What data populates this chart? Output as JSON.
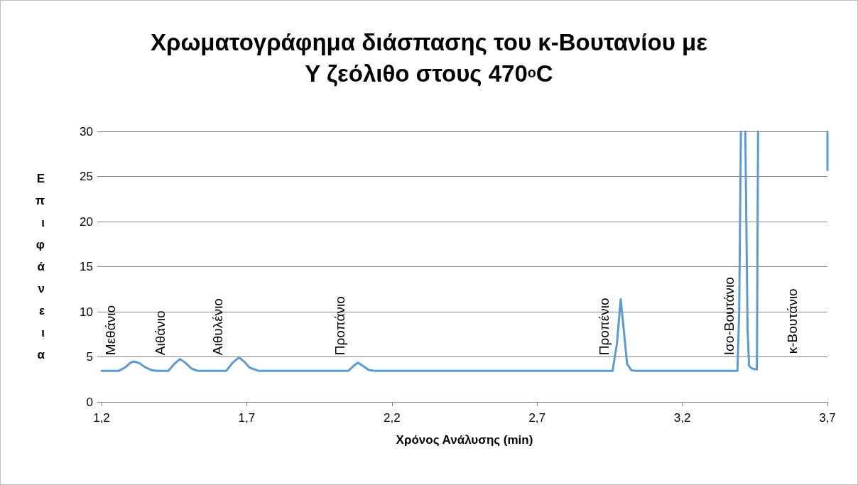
{
  "chart_data": {
    "type": "line",
    "title": "Χρωματογράφημα διάσπασης του κ-Βουτανίου με Y ζεόλιθο στους 470$^{o}$C",
    "xlabel": "Χρόνος Ανάλυσης (min)",
    "ylabel": "Επιφάνεια",
    "x": [
      1.2,
      1.26,
      1.28,
      1.3,
      1.311,
      1.33,
      1.35,
      1.37,
      1.39,
      1.43,
      1.45,
      1.47,
      1.49,
      1.51,
      1.53,
      1.63,
      1.65,
      1.673,
      1.69,
      1.71,
      1.74,
      2.05,
      2.07,
      2.083,
      2.1,
      2.12,
      2.14,
      2.96,
      2.975,
      2.988,
      3.0,
      3.01,
      3.025,
      3.04,
      3.39,
      3.396,
      3.402,
      3.41,
      3.417,
      3.425,
      3.43,
      3.44,
      3.457,
      3.461,
      3.58,
      3.7,
      3.7
    ],
    "series": [
      {
        "color": "#5b9bd5",
        "values": [
          3.45,
          3.45,
          3.8,
          4.35,
          4.49,
          4.3,
          3.85,
          3.55,
          3.45,
          3.45,
          4.2,
          4.75,
          4.3,
          3.7,
          3.45,
          3.45,
          4.3,
          4.94,
          4.5,
          3.8,
          3.45,
          3.45,
          4.05,
          4.35,
          4.0,
          3.55,
          3.45,
          3.45,
          6.5,
          11.39,
          7.5,
          4.2,
          3.5,
          3.45,
          3.45,
          10,
          30,
          null,
          30,
          8,
          4.0,
          3.7,
          3.6,
          30,
          null,
          30,
          25.7
        ]
      }
    ],
    "xlim": [
      1.2,
      3.7
    ],
    "xticks": [
      {
        "value": 1.2,
        "label": "1,2"
      },
      {
        "value": 1.7,
        "label": "1,7"
      },
      {
        "value": 2.2,
        "label": "2,2"
      },
      {
        "value": 2.7,
        "label": "2,7"
      },
      {
        "value": 3.2,
        "label": "3,2"
      },
      {
        "value": 3.7,
        "label": "3,7"
      }
    ],
    "ylim": [
      0,
      30
    ],
    "yticks": [
      0,
      5,
      10,
      15,
      20,
      25,
      30
    ],
    "annotations": [
      "Μεθάνιο",
      "Αιθάνιο",
      "Αιθυλένιο",
      "Προπάνιο",
      "Προπένιο",
      "Ισο-Βουτάνιο",
      "κ-Βουτάνιο"
    ],
    "grid": "y",
    "marker": "none",
    "line_style": "solid"
  }
}
